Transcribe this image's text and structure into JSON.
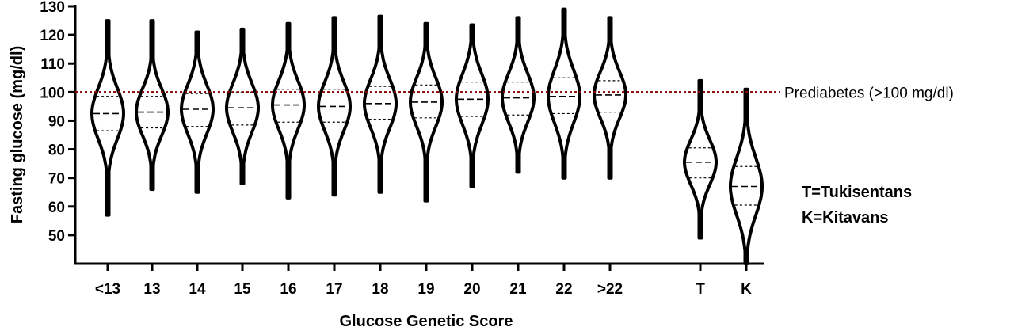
{
  "chart_data": {
    "type": "violin",
    "xlabel": "Glucose Genetic Score",
    "ylabel": "Fasting glucose (mg/dl)",
    "ylim": [
      40,
      130
    ],
    "yticks": [
      50,
      60,
      70,
      80,
      90,
      100,
      110,
      120,
      130
    ],
    "reference_line": {
      "value": 100,
      "label": "Prediabetes (>100 mg/dl)",
      "color": "#8B0000",
      "style": "dotted"
    },
    "legend_lines": [
      "T=Tukisentans",
      "K=Kitavans"
    ],
    "groups": [
      {
        "category": "<13",
        "min": 57,
        "max": 125,
        "q1": 86.5,
        "median": 92.5,
        "q3": 98.5
      },
      {
        "category": "13",
        "min": 66,
        "max": 125,
        "q1": 87.5,
        "median": 93,
        "q3": 98.5
      },
      {
        "category": "14",
        "min": 65,
        "max": 121,
        "q1": 88,
        "median": 94,
        "q3": 99.5
      },
      {
        "category": "15",
        "min": 68,
        "max": 122,
        "q1": 88.5,
        "median": 94.5,
        "q3": 100
      },
      {
        "category": "16",
        "min": 63,
        "max": 124,
        "q1": 89.5,
        "median": 95.5,
        "q3": 101
      },
      {
        "category": "17",
        "min": 64,
        "max": 126,
        "q1": 89.5,
        "median": 95,
        "q3": 101
      },
      {
        "category": "18",
        "min": 65,
        "max": 126.5,
        "q1": 90.5,
        "median": 96,
        "q3": 102
      },
      {
        "category": "19",
        "min": 62,
        "max": 124,
        "q1": 91,
        "median": 96.5,
        "q3": 102.5
      },
      {
        "category": "20",
        "min": 67,
        "max": 123.5,
        "q1": 91.5,
        "median": 97.5,
        "q3": 103.5
      },
      {
        "category": "21",
        "min": 72,
        "max": 126,
        "q1": 92,
        "median": 98,
        "q3": 103.5
      },
      {
        "category": "22",
        "min": 70,
        "max": 129,
        "q1": 92.5,
        "median": 98.5,
        "q3": 105
      },
      {
        "category": ">22",
        "min": 70,
        "max": 126,
        "q1": 93,
        "median": 99,
        "q3": 104
      },
      {
        "category": "T",
        "min": 49,
        "max": 104,
        "q1": 70,
        "median": 75.5,
        "q3": 80.5
      },
      {
        "category": "K",
        "min": 40,
        "max": 101,
        "q1": 60.5,
        "median": 67,
        "q3": 74
      }
    ]
  }
}
